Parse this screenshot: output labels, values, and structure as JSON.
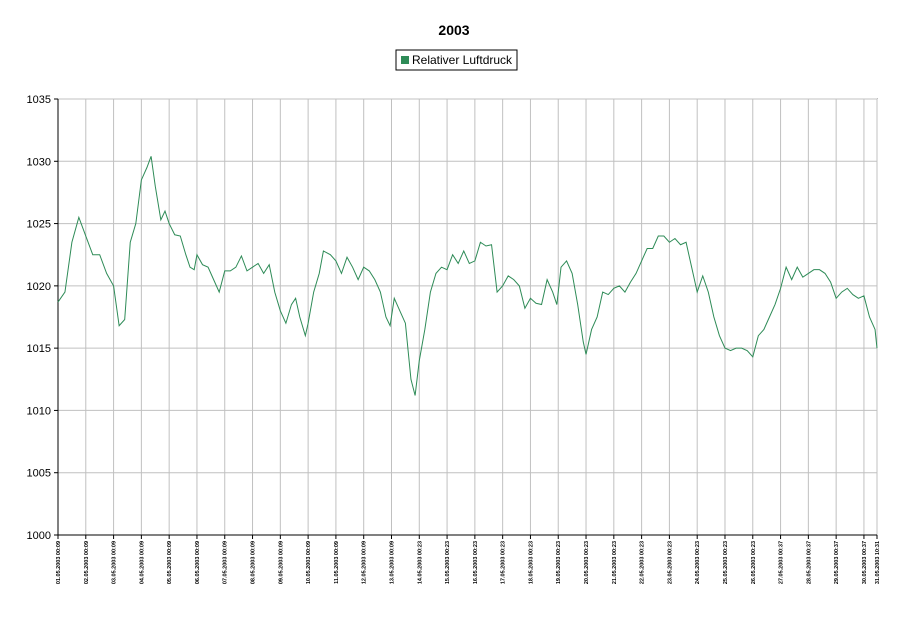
{
  "chart_data": {
    "type": "line",
    "title": "2003",
    "x": [
      0,
      0.25,
      0.5,
      0.75,
      1.0,
      1.25,
      1.5,
      1.75,
      2.0,
      2.2,
      2.4,
      2.6,
      2.8,
      3.0,
      3.2,
      3.35,
      3.5,
      3.7,
      3.85,
      4.0,
      4.2,
      4.4,
      4.6,
      4.75,
      4.9,
      5.0,
      5.2,
      5.4,
      5.6,
      5.8,
      6.0,
      6.2,
      6.4,
      6.6,
      6.8,
      7.0,
      7.2,
      7.4,
      7.6,
      7.8,
      8.0,
      8.2,
      8.4,
      8.55,
      8.7,
      8.9,
      9.0,
      9.2,
      9.4,
      9.55,
      9.8,
      10.0,
      10.2,
      10.4,
      10.6,
      10.8,
      11.0,
      11.2,
      11.4,
      11.6,
      11.8,
      11.95,
      12.1,
      12.3,
      12.5,
      12.7,
      12.85,
      13.0,
      13.2,
      13.4,
      13.6,
      13.8,
      14.0,
      14.2,
      14.4,
      14.6,
      14.8,
      15.0,
      15.2,
      15.4,
      15.6,
      15.8,
      16.0,
      16.2,
      16.4,
      16.6,
      16.8,
      17.0,
      17.2,
      17.4,
      17.6,
      17.8,
      17.95,
      18.1,
      18.3,
      18.5,
      18.7,
      18.9,
      19.0,
      19.2,
      19.4,
      19.6,
      19.8,
      20.0,
      20.2,
      20.4,
      20.6,
      20.8,
      21.0,
      21.2,
      21.4,
      21.6,
      21.8,
      22.0,
      22.2,
      22.4,
      22.6,
      22.8,
      23.0,
      23.2,
      23.4,
      23.6,
      23.8,
      24.0,
      24.2,
      24.4,
      24.6,
      24.8,
      25.0,
      25.2,
      25.4,
      25.6,
      25.8,
      26.0,
      26.2,
      26.4,
      26.6,
      26.8,
      27.0,
      27.2,
      27.4,
      27.6,
      27.8,
      28.0,
      28.2,
      28.4,
      28.6,
      28.8,
      29.0,
      29.2,
      29.4,
      29.47
    ],
    "series": [
      {
        "name": "Relativer Luftdruck",
        "color": "#2e8b57",
        "values": [
          1018.7,
          1019.5,
          1023.5,
          1025.5,
          1024,
          1022.5,
          1022.5,
          1021,
          1020,
          1016.8,
          1017.3,
          1023.5,
          1025,
          1028.5,
          1029.5,
          1030.4,
          1028,
          1025.3,
          1026,
          1025,
          1024.1,
          1024,
          1022.5,
          1021.5,
          1021.3,
          1022.5,
          1021.7,
          1021.5,
          1020.5,
          1019.5,
          1021.2,
          1021.2,
          1021.5,
          1022.4,
          1021.2,
          1021.5,
          1021.8,
          1021,
          1021.7,
          1019.5,
          1018,
          1017,
          1018.5,
          1019,
          1017.5,
          1016,
          1017,
          1019.5,
          1021,
          1022.8,
          1022.5,
          1022,
          1021,
          1022.3,
          1021.5,
          1020.5,
          1021.5,
          1021.2,
          1020.5,
          1019.5,
          1017.5,
          1016.8,
          1019,
          1018,
          1017,
          1012.5,
          1011.2,
          1014,
          1016.5,
          1019.5,
          1021,
          1021.5,
          1021.3,
          1022.5,
          1021.8,
          1022.8,
          1021.8,
          1022,
          1023.5,
          1023.2,
          1023.3,
          1019.5,
          1020,
          1020.8,
          1020.5,
          1020,
          1018.2,
          1019,
          1018.6,
          1018.5,
          1020.5,
          1019.5,
          1018.5,
          1021.5,
          1022,
          1021,
          1018.5,
          1015.5,
          1014.5,
          1016.5,
          1017.5,
          1019.5,
          1019.3,
          1019.8,
          1020,
          1019.5,
          1020.3,
          1021,
          1022,
          1023,
          1023,
          1024,
          1024,
          1023.5,
          1023.8,
          1023.3,
          1023.5,
          1021.5,
          1019.5,
          1020.8,
          1019.5,
          1017.5,
          1016,
          1015,
          1014.8,
          1015,
          1015,
          1014.8,
          1014.3,
          1016,
          1016.5,
          1017.5,
          1018.5,
          1019.8,
          1021.5,
          1020.5,
          1021.5,
          1020.7,
          1021,
          1021.3,
          1021.3,
          1021,
          1020.3,
          1019,
          1019.5,
          1019.8,
          1019.3,
          1019,
          1019.2,
          1017.5,
          1016.5,
          1015
        ]
      }
    ],
    "xlim": [
      0,
      29.47
    ],
    "xticks": [
      {
        "value": 0,
        "label": "01.05.2003 00:09"
      },
      {
        "value": 1,
        "label": "02.05.2003 00:09"
      },
      {
        "value": 2,
        "label": "03.05.2003 00:09"
      },
      {
        "value": 3,
        "label": "04.05.2003 00:09"
      },
      {
        "value": 4,
        "label": "05.05.2003 00:09"
      },
      {
        "value": 5,
        "label": "06.05.2003 00:09"
      },
      {
        "value": 6,
        "label": "07.05.2003 00:09"
      },
      {
        "value": 7,
        "label": "08.05.2003 00:09"
      },
      {
        "value": 8,
        "label": "09.05.2003 00:09"
      },
      {
        "value": 9,
        "label": "10.05.2003 00:09"
      },
      {
        "value": 10,
        "label": "11.05.2003 00:09"
      },
      {
        "value": 11,
        "label": "12.05.2003 00:09"
      },
      {
        "value": 12,
        "label": "13.05.2003 00:09"
      },
      {
        "value": 13,
        "label": "14.05.2003 00:23"
      },
      {
        "value": 14,
        "label": "15.05.2003 00:23"
      },
      {
        "value": 15,
        "label": "16.05.2003 00:23"
      },
      {
        "value": 16,
        "label": "17.05.2003 00:23"
      },
      {
        "value": 17,
        "label": "18.05.2003 00:23"
      },
      {
        "value": 18,
        "label": "19.05.2003 00:23"
      },
      {
        "value": 19,
        "label": "20.05.2003 00:23"
      },
      {
        "value": 20,
        "label": "21.05.2003 00:23"
      },
      {
        "value": 21,
        "label": "22.05.2003 00:23"
      },
      {
        "value": 22,
        "label": "23.05.2003 00:23"
      },
      {
        "value": 23,
        "label": "24.05.2003 00:23"
      },
      {
        "value": 24,
        "label": "25.05.2003 00:23"
      },
      {
        "value": 25,
        "label": "26.05.2003 00:23"
      },
      {
        "value": 26,
        "label": "27.05.2003 00:37"
      },
      {
        "value": 27,
        "label": "28.05.2003 00:37"
      },
      {
        "value": 28,
        "label": "29.05.2003 00:37"
      },
      {
        "value": 29,
        "label": "30.05.2003 00:37"
      },
      {
        "value": 29.47,
        "label": "31.05.2003 10:31"
      }
    ],
    "ylim": [
      1000,
      1035
    ],
    "yticks": [
      1000,
      1005,
      1010,
      1015,
      1020,
      1025,
      1030,
      1035
    ],
    "grid": true
  }
}
